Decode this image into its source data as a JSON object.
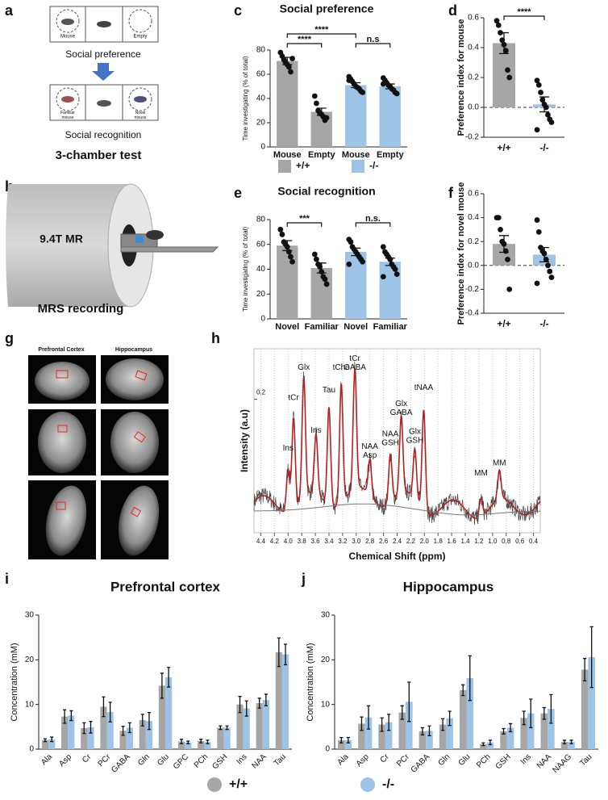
{
  "panels": {
    "a": {
      "label": "a",
      "box_left": "Mouse",
      "box_right": "Empty",
      "step1": "Social preference",
      "box_left2": [
        "Familiar",
        "mouse"
      ],
      "box_right2": [
        "Novel",
        "mouse"
      ],
      "step2": "Social recognition",
      "caption": "3-chamber test"
    },
    "b": {
      "label": "b",
      "magnet": "9.4T MR",
      "caption": "MRS recording"
    },
    "g": {
      "label": "g",
      "columns": [
        "Prefrontal Cortex",
        "Hippocampus"
      ]
    }
  },
  "chart_data": [
    {
      "type": "bar",
      "label": "c",
      "title": "Social preference",
      "ylabel": "Time investigating (% of total)",
      "categories": [
        "Mouse",
        "Empty",
        "Mouse",
        "Empty"
      ],
      "ylim": [
        0,
        80
      ],
      "yticks": [
        0,
        20,
        40,
        60,
        80
      ],
      "legend": "bottom",
      "series": [
        {
          "name": "+/+",
          "color": "#a6a6a6",
          "values": [
            71,
            29,
            null,
            null
          ],
          "errors": [
            3,
            3,
            null,
            null
          ],
          "points": [
            [
              78,
              75,
              72,
              70,
              68,
              66,
              62,
              73
            ],
            [
              42,
              36,
              30,
              28,
              27,
              25,
              22,
              24
            ],
            null,
            null
          ]
        },
        {
          "name": "-/-",
          "color": "#9dc3e6",
          "values": [
            null,
            null,
            51,
            50
          ],
          "errors": [
            null,
            null,
            2,
            2
          ],
          "points": [
            null,
            null,
            [
              58,
              56,
              54,
              52,
              50,
              49,
              48,
              46,
              45,
              55
            ],
            [
              57,
              55,
              53,
              51,
              50,
              48,
              47,
              45,
              44,
              52
            ]
          ]
        }
      ],
      "annotations": [
        "****",
        "****",
        "n.s"
      ]
    },
    {
      "type": "bar",
      "label": "d",
      "ylabel": "Preference index for mouse",
      "categories": [
        "+/+",
        "-/-"
      ],
      "ylim": [
        -0.2,
        0.6
      ],
      "yticks": [
        -0.2,
        {
          "value": 0,
          "label": "0.0"
        },
        0.2,
        0.4,
        0.6
      ],
      "series": [
        {
          "color": "#a6a6a6",
          "values": [
            0.43,
            null
          ],
          "errors": [
            0.07,
            null
          ],
          "points": [
            [
              0.58,
              0.55,
              0.5,
              0.45,
              0.42,
              0.38,
              0.25,
              0.2
            ],
            null
          ]
        },
        {
          "color": "#9dc3e6",
          "values": [
            null,
            0.02
          ],
          "errors": [
            null,
            0.05
          ],
          "points": [
            null,
            [
              0.18,
              0.15,
              0.1,
              0.05,
              0.02,
              0,
              -0.05,
              -0.08,
              -0.1,
              -0.15
            ]
          ]
        }
      ],
      "annotations": [
        "****"
      ]
    },
    {
      "type": "bar",
      "label": "e",
      "title": "Social recognition",
      "ylabel": "Time investigating (% of total)",
      "categories": [
        "Novel",
        "Familiar",
        "Novel",
        "Familiar"
      ],
      "ylim": [
        0,
        80
      ],
      "yticks": [
        0,
        20,
        40,
        60,
        80
      ],
      "series": [
        {
          "color": "#a6a6a6",
          "values": [
            59,
            41,
            null,
            null
          ],
          "errors": [
            4,
            4,
            null,
            null
          ],
          "points": [
            [
              72,
              68,
              62,
              60,
              58,
              54,
              50,
              46
            ],
            [
              52,
              48,
              44,
              42,
              38,
              34,
              32,
              28
            ],
            null,
            null
          ]
        },
        {
          "color": "#9dc3e6",
          "values": [
            null,
            null,
            54,
            46
          ],
          "errors": [
            null,
            null,
            3,
            3
          ],
          "points": [
            null,
            null,
            [
              64,
              62,
              58,
              56,
              54,
              52,
              50,
              48,
              46,
              44
            ],
            [
              58,
              54,
              52,
              50,
              48,
              44,
              42,
              40,
              36,
              34
            ]
          ]
        }
      ],
      "annotations": [
        "***",
        "n.s."
      ]
    },
    {
      "type": "bar",
      "label": "f",
      "ylabel": "Preference index for novel mouse",
      "categories": [
        "+/+",
        "-/-"
      ],
      "ylim": [
        -0.4,
        0.6
      ],
      "yticks": [
        -0.4,
        -0.2,
        {
          "value": 0,
          "label": "0.0"
        },
        0.2,
        0.4,
        0.6
      ],
      "series": [
        {
          "color": "#a6a6a6",
          "values": [
            0.18,
            null
          ],
          "errors": [
            0.07,
            null
          ],
          "points": [
            [
              0.4,
              0.4,
              0.3,
              0.2,
              0.18,
              0.12,
              0.05,
              -0.2
            ],
            null
          ]
        },
        {
          "color": "#9dc3e6",
          "values": [
            null,
            0.09
          ],
          "errors": [
            null,
            0.06
          ],
          "points": [
            null,
            [
              0.38,
              0.28,
              0.15,
              0.12,
              0.1,
              0.05,
              0,
              -0.05,
              -0.1,
              -0.15
            ]
          ]
        }
      ]
    },
    {
      "type": "spectrum",
      "label": "h",
      "xlabel": "Chemical Shift (ppm)",
      "ylabel": "Intensity (a.u)",
      "xlim": [
        4.5,
        0.3
      ],
      "ylim": [
        -0.065,
        0.3
      ],
      "grid": true,
      "xticks": [
        4.4,
        4.2,
        {
          "value": 4,
          "label": "4.0"
        },
        3.8,
        3.6,
        3.4,
        3.2,
        {
          "value": 3,
          "label": "3.0"
        },
        2.8,
        2.6,
        2.4,
        2.2,
        {
          "value": 2,
          "label": "2.0"
        },
        1.8,
        1.6,
        1.4,
        1.2,
        {
          "value": 1,
          "label": "1.0"
        },
        0.8,
        0.6,
        0.4
      ],
      "yticks": [
        0,
        0.2
      ],
      "annotations": [
        {
          "lines": [
            "Ins"
          ],
          "x": 4.0,
          "y": 0.09
        },
        {
          "lines": [
            "tCr"
          ],
          "x": 3.92,
          "y": 0.19
        },
        {
          "lines": [
            "Glx"
          ],
          "x": 3.77,
          "y": 0.25
        },
        {
          "lines": [
            "Ins"
          ],
          "x": 3.59,
          "y": 0.125
        },
        {
          "lines": [
            "Tau"
          ],
          "x": 3.4,
          "y": 0.205
        },
        {
          "lines": [
            "tCho"
          ],
          "x": 3.22,
          "y": 0.25
        },
        {
          "lines": [
            "tCr",
            "GABA"
          ],
          "x": 3.02,
          "y": 0.25
        },
        {
          "lines": [
            "NAA",
            "Asp"
          ],
          "x": 2.8,
          "y": 0.075
        },
        {
          "lines": [
            "NAA",
            "GSH"
          ],
          "x": 2.5,
          "y": 0.1
        },
        {
          "lines": [
            "Glx",
            "GABA"
          ],
          "x": 2.34,
          "y": 0.16
        },
        {
          "lines": [
            "Glx",
            "GSH"
          ],
          "x": 2.14,
          "y": 0.105
        },
        {
          "lines": [
            "tNAA"
          ],
          "x": 2.01,
          "y": 0.21
        },
        {
          "lines": [
            "MM"
          ],
          "x": 1.17,
          "y": 0.04
        },
        {
          "lines": [
            "MM"
          ],
          "x": 0.9,
          "y": 0.06
        }
      ]
    },
    {
      "type": "bar",
      "label": "i",
      "title": "Prefrontal cortex",
      "ylabel": "Concentration (mM)",
      "categories": [
        "Ala",
        "Asp",
        "Cr",
        "PCr",
        "GABA",
        "Gln",
        "Glu",
        "GPC",
        "PCh",
        "GSH",
        "Ins",
        "NAA",
        "Tau"
      ],
      "ylim": [
        0,
        30
      ],
      "yticks": [
        0,
        10,
        20,
        30
      ],
      "legend": "bottom",
      "series": [
        {
          "name": "+/+",
          "color": "#a6a6a6",
          "values": [
            2,
            7.3,
            4.7,
            9.5,
            4.1,
            6.5,
            14.2,
            1.7,
            1.8,
            4.8,
            10,
            10.3,
            21.7
          ],
          "errors": [
            0.3,
            1.5,
            1.2,
            2.2,
            1,
            1.3,
            2.8,
            0.5,
            0.4,
            0.4,
            1.8,
            1.1,
            3.2
          ]
        },
        {
          "name": "-/-",
          "color": "#9dc3e6",
          "values": [
            2.2,
            7.5,
            4.9,
            8.3,
            4.8,
            6.3,
            16.1,
            1.5,
            1.6,
            4.8,
            9.1,
            11,
            21.2
          ],
          "errors": [
            0.5,
            1.1,
            1.3,
            2.2,
            1.1,
            1.9,
            2.2,
            0.3,
            0.4,
            0.4,
            1.7,
            1.3,
            2.3
          ]
        }
      ]
    },
    {
      "type": "bar",
      "label": "j",
      "title": "Hippocampus",
      "ylabel": "Concentration (mM)",
      "categories": [
        "Ala",
        "Asp",
        "Cr",
        "PCr",
        "GABA",
        "Gln",
        "Glu",
        "PCh",
        "GSH",
        "Ins",
        "NAA",
        "NAAG",
        "Tau"
      ],
      "ylim": [
        0,
        30
      ],
      "yticks": [
        0,
        10,
        20,
        30
      ],
      "series": [
        {
          "color": "#a6a6a6",
          "values": [
            2,
            5.7,
            5.5,
            8.2,
            4,
            5.5,
            13.2,
            1.1,
            4,
            7,
            8,
            1.6,
            17.8
          ],
          "errors": [
            0.6,
            1.5,
            1.5,
            1.5,
            0.8,
            1.3,
            1.2,
            0.3,
            0.6,
            1.5,
            1.3,
            0.4,
            2.5
          ]
        },
        {
          "color": "#9dc3e6",
          "values": [
            2,
            7.1,
            6,
            10.6,
            4.1,
            6.9,
            15.9,
            1.5,
            4.8,
            8,
            9,
            1.6,
            20.6
          ],
          "errors": [
            0.6,
            2.6,
            1.8,
            4.4,
            1.1,
            1.6,
            5,
            0.5,
            0.9,
            3.2,
            3.2,
            0.4,
            6.8
          ]
        }
      ]
    }
  ]
}
